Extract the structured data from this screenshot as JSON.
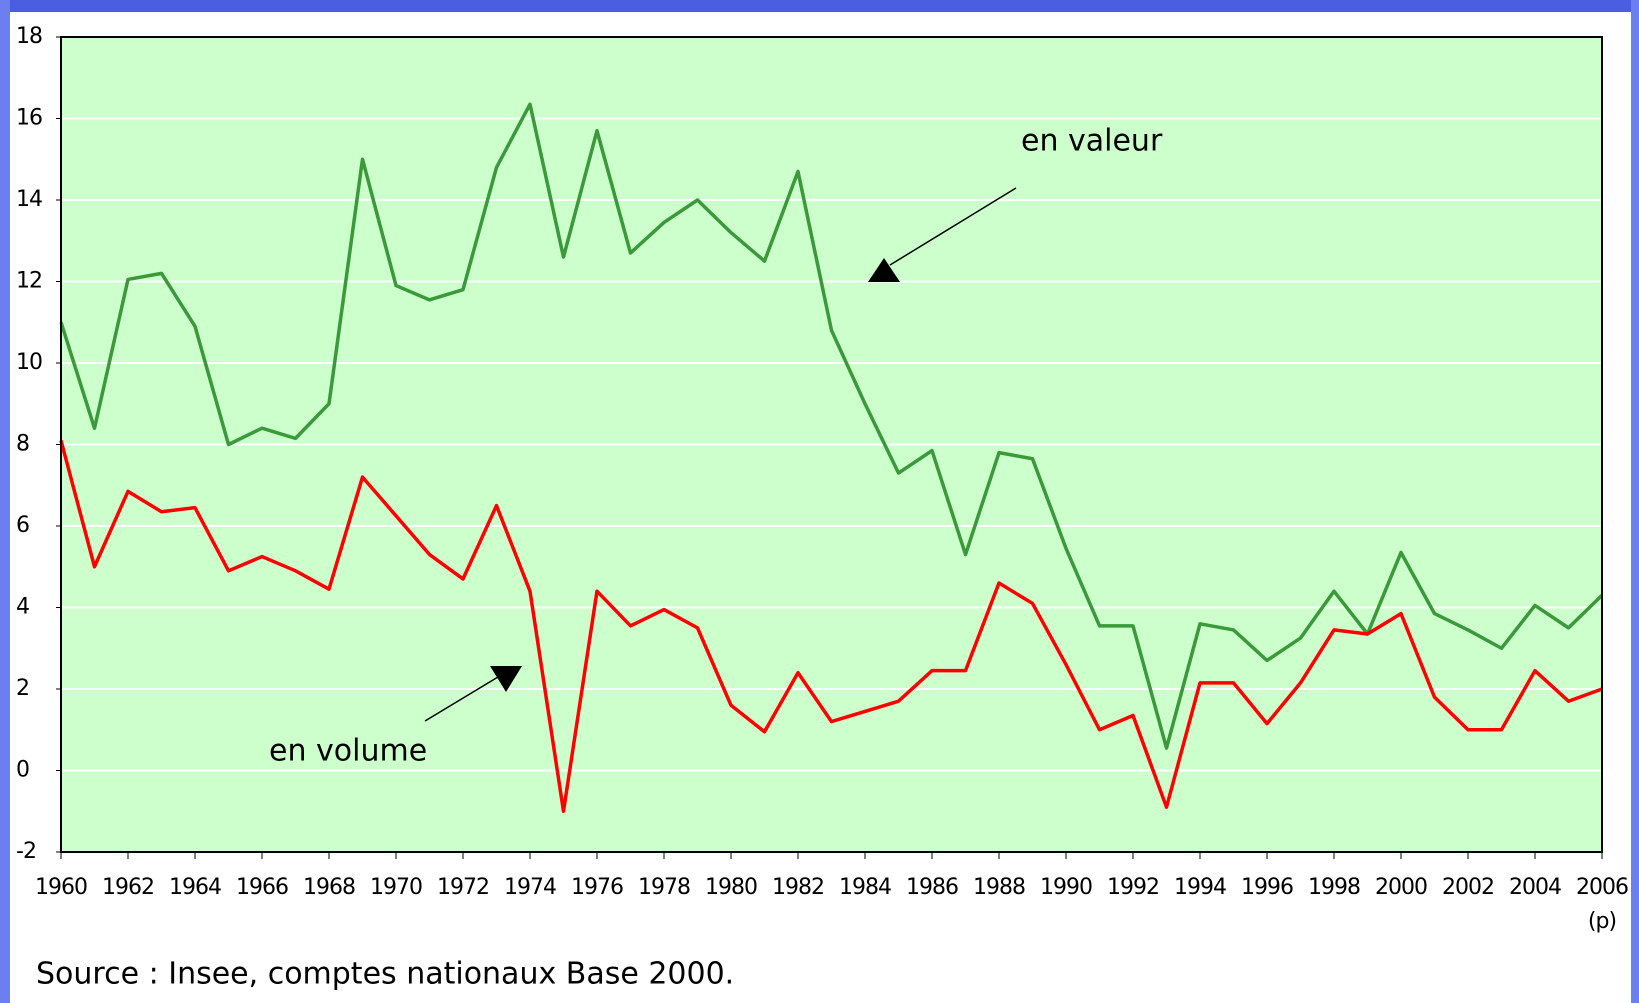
{
  "chart_data": {
    "type": "line",
    "x": [
      1960,
      1961,
      1962,
      1963,
      1964,
      1965,
      1966,
      1967,
      1968,
      1969,
      1970,
      1971,
      1972,
      1973,
      1974,
      1975,
      1976,
      1977,
      1978,
      1979,
      1980,
      1981,
      1982,
      1983,
      1984,
      1985,
      1986,
      1987,
      1988,
      1989,
      1990,
      1991,
      1992,
      1993,
      1994,
      1995,
      1996,
      1997,
      1998,
      1999,
      2000,
      2001,
      2002,
      2003,
      2004,
      2005,
      2006
    ],
    "series": [
      {
        "name": "en valeur",
        "color": "#3a9a3a",
        "values": [
          11.0,
          8.4,
          12.05,
          12.2,
          10.9,
          8.0,
          8.4,
          8.15,
          9.0,
          15.0,
          11.9,
          11.55,
          11.8,
          14.8,
          16.35,
          12.6,
          15.7,
          12.7,
          13.45,
          14.0,
          13.2,
          12.5,
          14.7,
          10.8,
          9.0,
          7.3,
          7.85,
          5.3,
          7.8,
          7.65,
          5.45,
          3.55,
          3.55,
          0.55,
          3.6,
          3.45,
          2.7,
          3.25,
          4.4,
          3.35,
          5.35,
          3.85,
          3.45,
          3.0,
          4.05,
          3.5,
          4.3
        ]
      },
      {
        "name": "en volume",
        "color": "#ff0000",
        "values": [
          8.1,
          5.0,
          6.85,
          6.35,
          6.45,
          4.9,
          5.25,
          4.9,
          4.45,
          7.2,
          6.25,
          5.3,
          4.7,
          6.5,
          4.4,
          -1.0,
          4.4,
          3.55,
          3.95,
          3.5,
          1.6,
          0.95,
          2.4,
          1.2,
          1.45,
          1.7,
          2.45,
          2.45,
          4.6,
          4.1,
          2.6,
          1.0,
          1.35,
          -0.9,
          2.15,
          2.15,
          1.15,
          2.15,
          3.45,
          3.35,
          3.85,
          1.8,
          1.0,
          1.0,
          2.45,
          1.7,
          2.0
        ]
      }
    ],
    "xlim": [
      1960,
      2006
    ],
    "xticks": [
      1960,
      1962,
      1964,
      1966,
      1968,
      1970,
      1972,
      1974,
      1976,
      1978,
      1980,
      1982,
      1984,
      1986,
      1988,
      1990,
      1992,
      1994,
      1996,
      1998,
      2000,
      2002,
      2004,
      2006
    ],
    "ylim": [
      -2,
      18
    ],
    "yticks": [
      -2,
      0,
      2,
      4,
      6,
      8,
      10,
      12,
      14,
      16,
      18
    ],
    "grid": true,
    "background": "#ccffcc",
    "x_note": "(p)",
    "source": "Source : Insee, comptes nationaux Base 2000."
  }
}
